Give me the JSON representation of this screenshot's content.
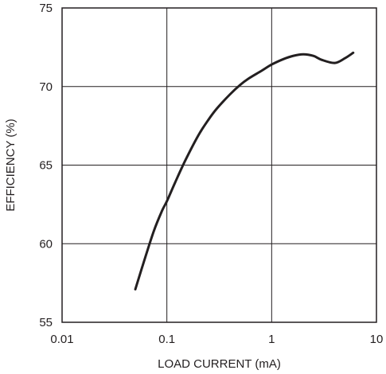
{
  "chart_data": {
    "type": "line",
    "title": "",
    "xlabel": "LOAD CURRENT (mA)",
    "ylabel": "EFFICIENCY (%)",
    "x_scale": "log",
    "xlim": [
      0.01,
      10
    ],
    "ylim": [
      55,
      75
    ],
    "x_ticks": [
      0.01,
      0.1,
      1,
      10
    ],
    "x_tick_labels": [
      "0.01",
      "0.1",
      "1",
      "10"
    ],
    "y_ticks": [
      55,
      60,
      65,
      70,
      75
    ],
    "y_tick_labels": [
      "55",
      "60",
      "65",
      "70",
      "75"
    ],
    "grid": true,
    "legend": "none",
    "line_color": "#231f20",
    "series": [
      {
        "x": [
          0.05,
          0.06,
          0.075,
          0.09,
          0.1,
          0.12,
          0.15,
          0.2,
          0.25,
          0.3,
          0.4,
          0.5,
          0.6,
          0.8,
          1.0,
          1.3,
          1.6,
          2.0,
          2.5,
          3.0,
          4.0,
          5.0,
          6.0
        ],
        "y": [
          57.1,
          58.8,
          60.8,
          62.1,
          62.7,
          63.9,
          65.3,
          66.9,
          67.9,
          68.6,
          69.5,
          70.1,
          70.5,
          71.0,
          71.4,
          71.75,
          71.95,
          72.05,
          71.95,
          71.7,
          71.5,
          71.8,
          72.15
        ]
      }
    ]
  }
}
